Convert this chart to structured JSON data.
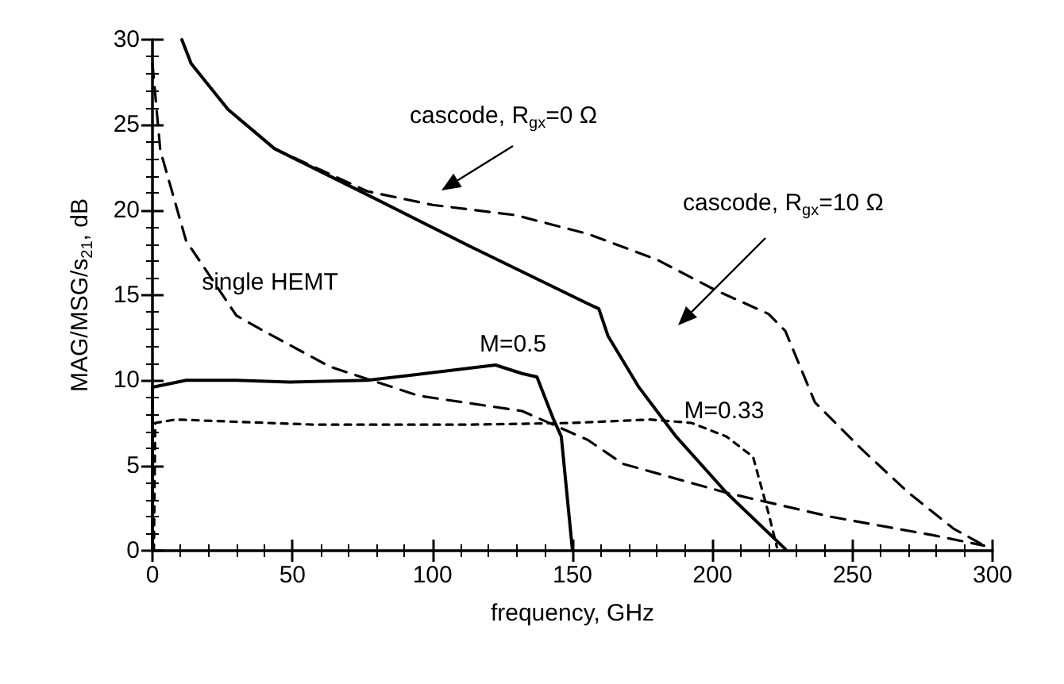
{
  "chart_data": {
    "type": "line",
    "xlabel": "frequency, GHz",
    "ylabel": "MAG/MSG/s$_{21}$, dB",
    "xlim": [
      0,
      300
    ],
    "ylim": [
      0,
      30
    ],
    "xticks": [
      0,
      50,
      100,
      150,
      200,
      250,
      300
    ],
    "yticks": [
      0,
      5,
      10,
      15,
      20,
      25,
      30
    ],
    "grid": false,
    "marker": "none",
    "series": [
      {
        "color": "#000000",
        "line_style": "dashed",
        "x": [
          10.5,
          13.8,
          27,
          43.6,
          76.7,
          100,
          129.6,
          155.5,
          180,
          201,
          220,
          226,
          236.6,
          253,
          270,
          286,
          297
        ],
        "values": [
          30,
          28.6,
          25.9,
          23.6,
          21.1,
          20.3,
          19.7,
          18.6,
          17.1,
          15.3,
          13.9,
          12.9,
          8.7,
          6.0,
          3.4,
          1.3,
          0.3
        ]
      },
      {
        "color": "#000000",
        "line_style": "solid",
        "x": [
          10.5,
          13.8,
          27,
          43.6,
          76.7,
          113,
          155.5,
          159.4,
          162.7,
          173.7,
          187,
          205,
          226
        ],
        "values": [
          30,
          28.6,
          25.9,
          23.6,
          20.9,
          17.9,
          14.5,
          14.2,
          12.6,
          9.6,
          6.7,
          3.4,
          0.1
        ]
      },
      {
        "color": "#000000",
        "line_style": "dashed",
        "x": [
          0,
          2.8,
          12,
          30,
          39.7,
          63.4,
          95,
          132,
          155.5,
          168,
          205,
          242,
          279,
          297
        ],
        "values": [
          28.6,
          23.5,
          18.2,
          13.8,
          12.9,
          10.8,
          9.1,
          8.2,
          6.5,
          5.1,
          3.4,
          2.0,
          0.9,
          0.3
        ]
      },
      {
        "color": "#000000",
        "line_style": "solid",
        "x": [
          0,
          0,
          12,
          30,
          49,
          76.7,
          122.5,
          132,
          137.3,
          143,
          146,
          150
        ],
        "values": [
          0,
          9.6,
          10.0,
          10.0,
          9.9,
          10.0,
          10.9,
          10.4,
          10.2,
          7.8,
          6.7,
          0
        ]
      },
      {
        "color": "#000000",
        "line_style": "dotted",
        "x": [
          0.5,
          1,
          8.3,
          58,
          113,
          150,
          177.6,
          192.5,
          205,
          214.5,
          220,
          223
        ],
        "values": [
          0,
          7.5,
          7.7,
          7.4,
          7.4,
          7.5,
          7.7,
          7.5,
          6.7,
          5.5,
          2.2,
          0.2
        ]
      }
    ],
    "annotations": [
      "cascode, R$_{gx}$=0 Ω",
      "cascode, R$_{gx}$=10 Ω",
      "single HEMT",
      "M=0.5",
      "M=0.33"
    ]
  }
}
